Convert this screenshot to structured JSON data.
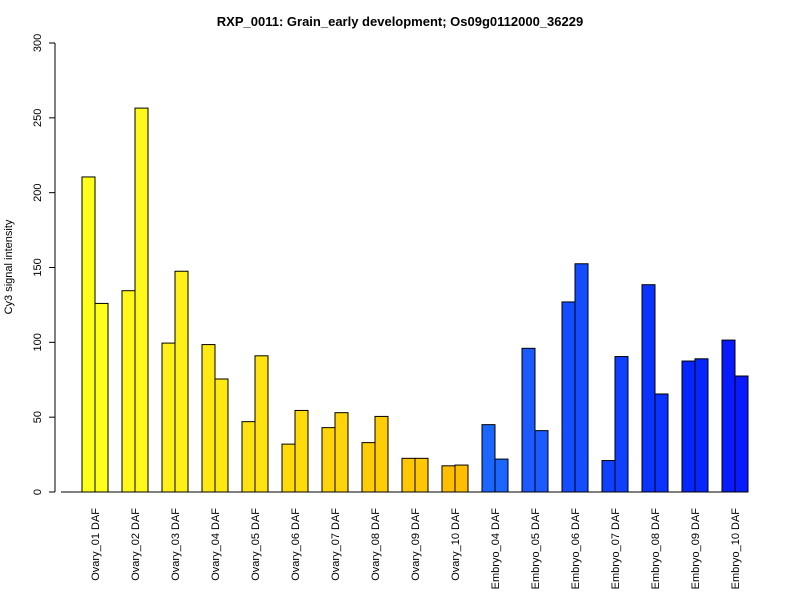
{
  "chart_data": {
    "type": "bar",
    "title": "RXP_0011: Grain_early development; Os09g0112000_36229",
    "xlabel": "",
    "ylabel": "Cy3 signal intensity",
    "ylim": [
      0,
      300
    ],
    "yticks": [
      0,
      50,
      100,
      150,
      200,
      250,
      300
    ],
    "grid": false,
    "legend": "none",
    "categories": [
      "Ovary_01 DAF",
      "Ovary_02 DAF",
      "Ovary_03 DAF",
      "Ovary_04 DAF",
      "Ovary_05 DAF",
      "Ovary_06 DAF",
      "Ovary_07 DAF",
      "Ovary_08 DAF",
      "Ovary_09 DAF",
      "Ovary_10 DAF",
      "Embryo_04 DAF",
      "Embryo_05 DAF",
      "Embryo_06 DAF",
      "Embryo_07 DAF",
      "Embryo_08 DAF",
      "Embryo_09 DAF",
      "Embryo_10 DAF"
    ],
    "series": [
      {
        "values": [
          210.5,
          134.5,
          99.5,
          98.5,
          47,
          32,
          43,
          33,
          22.5,
          17.5,
          45,
          96,
          127,
          21,
          138.5,
          87.5,
          101.5
        ]
      },
      {
        "values": [
          126,
          256.5,
          147.5,
          75.5,
          91,
          54.5,
          53,
          50.5,
          22.5,
          18,
          22,
          41,
          152.5,
          90.5,
          65.5,
          89,
          77.5
        ]
      }
    ],
    "colors": [
      "#ffff1a",
      "#fff81a",
      "#fff017",
      "#ffe912",
      "#ffe20f",
      "#ffdb0a",
      "#ffd408",
      "#ffcd05",
      "#ffc603",
      "#ffbf00",
      "#1a66ff",
      "#1a5aff",
      "#144dff",
      "#1040ff",
      "#0a33ff",
      "#0626ff",
      "#0a1aff"
    ]
  }
}
